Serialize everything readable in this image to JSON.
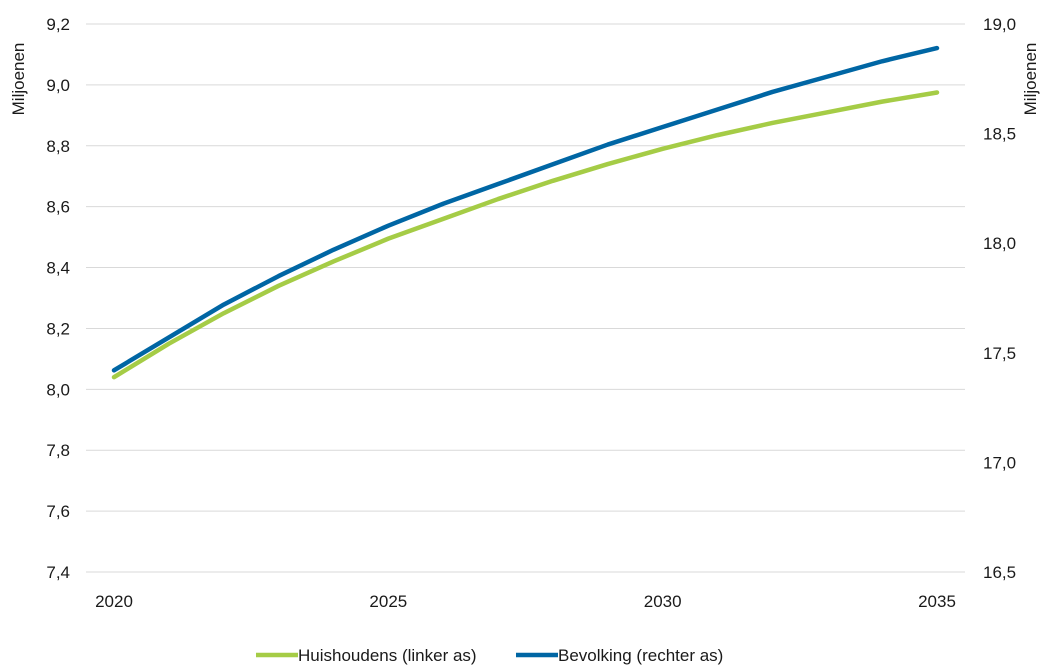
{
  "chart_data": {
    "type": "line",
    "x": [
      2020,
      2021,
      2022,
      2023,
      2024,
      2025,
      2026,
      2027,
      2028,
      2029,
      2030,
      2031,
      2032,
      2033,
      2034,
      2035
    ],
    "x_ticks": [
      "2020",
      "2025",
      "2030",
      "2035"
    ],
    "y_left": {
      "label": "Miljoenen",
      "range": [
        7.4,
        9.2
      ],
      "ticks": [
        "7,4",
        "7,6",
        "7,8",
        "8,0",
        "8,2",
        "8,4",
        "8,6",
        "8,8",
        "9,0",
        "9,2"
      ]
    },
    "y_right": {
      "label": "Miljoenen",
      "range": [
        16.5,
        19.0
      ],
      "ticks": [
        "16,5",
        "17,0",
        "17,5",
        "18,0",
        "18,5",
        "19,0"
      ]
    },
    "series": [
      {
        "name": "Huishoudens (linker as)",
        "axis": "left",
        "color": "#a5cc46",
        "values": [
          8.04,
          8.15,
          8.25,
          8.34,
          8.42,
          8.495,
          8.56,
          8.625,
          8.685,
          8.74,
          8.79,
          8.835,
          8.875,
          8.91,
          8.945,
          8.975
        ]
      },
      {
        "name": "Bevolking (rechter as)",
        "axis": "right",
        "color": "#0066a4",
        "values": [
          17.42,
          17.57,
          17.72,
          17.85,
          17.97,
          18.08,
          18.18,
          18.27,
          18.36,
          18.45,
          18.53,
          18.61,
          18.69,
          18.76,
          18.83,
          18.89
        ]
      }
    ],
    "grid": true,
    "legend_position": "bottom"
  }
}
